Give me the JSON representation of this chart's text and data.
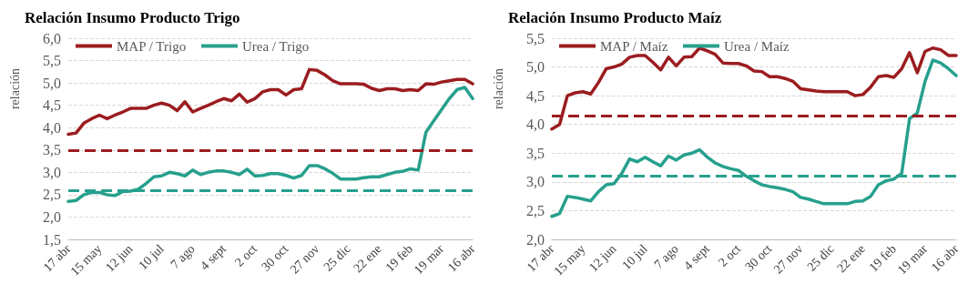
{
  "chart_data": [
    {
      "type": "line",
      "title": "Relación Insumo Producto Trigo",
      "ylabel": "relación",
      "categories": [
        "17 abr",
        null,
        null,
        null,
        "15 may",
        null,
        null,
        null,
        "12 jun",
        null,
        null,
        null,
        "10 jul",
        null,
        null,
        null,
        "7 ago",
        null,
        null,
        null,
        "4 sept",
        null,
        null,
        null,
        "2 oct",
        null,
        null,
        null,
        "30 oct",
        null,
        null,
        null,
        "27 nov",
        null,
        null,
        null,
        "25 dic",
        null,
        null,
        null,
        "22 ene",
        null,
        null,
        null,
        "19 feb",
        null,
        null,
        null,
        "19 mar",
        null,
        null,
        null,
        "16 abr"
      ],
      "series": [
        {
          "name": "MAP / Trigo",
          "color": "#9b1c1f",
          "values": [
            3.85,
            3.88,
            4.1,
            4.2,
            4.28,
            4.2,
            4.28,
            4.35,
            4.43,
            4.43,
            4.43,
            4.5,
            4.55,
            4.5,
            4.38,
            4.58,
            4.35,
            4.43,
            4.5,
            4.58,
            4.65,
            4.6,
            4.75,
            4.57,
            4.65,
            4.8,
            4.85,
            4.85,
            4.73,
            4.85,
            4.87,
            5.3,
            5.28,
            5.18,
            5.05,
            4.98,
            4.98,
            4.98,
            4.97,
            4.88,
            4.83,
            4.87,
            4.87,
            4.83,
            4.85,
            4.83,
            4.98,
            4.97,
            5.02,
            5.05,
            5.08,
            5.08,
            4.98
          ]
        },
        {
          "name": "Urea / Trigo",
          "color": "#26a08d",
          "values": [
            2.35,
            2.37,
            2.5,
            2.55,
            2.55,
            2.5,
            2.48,
            2.57,
            2.58,
            2.62,
            2.75,
            2.9,
            2.92,
            3.0,
            2.97,
            2.92,
            3.05,
            2.95,
            3.0,
            3.03,
            3.03,
            3.0,
            2.95,
            3.07,
            2.92,
            2.93,
            2.97,
            2.97,
            2.93,
            2.87,
            2.93,
            3.15,
            3.15,
            3.08,
            2.98,
            2.85,
            2.85,
            2.85,
            2.88,
            2.9,
            2.9,
            2.95,
            3.0,
            3.02,
            3.08,
            3.05,
            3.9,
            4.15,
            4.4,
            4.65,
            4.85,
            4.9,
            4.65
          ]
        }
      ],
      "ref_lines": [
        {
          "axis": "y",
          "value": 3.5,
          "label": null,
          "color": "#9b1c1f",
          "line_style": "dashed"
        },
        {
          "axis": "y",
          "value": 2.6,
          "label": null,
          "color": "#26a08d",
          "line_style": "dashed"
        }
      ],
      "ylim": [
        1.5,
        6.0
      ],
      "yticks": [
        {
          "value": 1.5,
          "label": "1,5"
        },
        {
          "value": 2.0,
          "label": "2,0"
        },
        {
          "value": 2.5,
          "label": "2,5"
        },
        {
          "value": 3.0,
          "label": "3,0"
        },
        {
          "value": 3.5,
          "label": "3,5"
        },
        {
          "value": 4.0,
          "label": "4,0"
        },
        {
          "value": 4.5,
          "label": "4,5"
        },
        {
          "value": 5.0,
          "label": "5,0"
        },
        {
          "value": 5.5,
          "label": "5,5"
        },
        {
          "value": 6.0,
          "label": "6,0"
        }
      ],
      "grid": "y",
      "legend": "top left",
      "marker": "none",
      "line_style": "solid"
    },
    {
      "type": "line",
      "title": "Relación Insumo Producto Maíz",
      "ylabel": "relación",
      "categories": [
        "17 abr",
        null,
        null,
        null,
        "15 may",
        null,
        null,
        null,
        "12 jun",
        null,
        null,
        null,
        "10 jul",
        null,
        null,
        null,
        "7 ago",
        null,
        null,
        null,
        "4 sept",
        null,
        null,
        null,
        "2 oct",
        null,
        null,
        null,
        "30 oct",
        null,
        null,
        null,
        "27 nov",
        null,
        null,
        null,
        "25 dic",
        null,
        null,
        null,
        "22 ene",
        null,
        null,
        null,
        "19 feb",
        null,
        null,
        null,
        "19 mar",
        null,
        null,
        null,
        "16 abr"
      ],
      "series": [
        {
          "name": "MAP / Maíz",
          "color": "#9b1c1f",
          "values": [
            3.92,
            4.0,
            4.5,
            4.55,
            4.57,
            4.53,
            4.73,
            4.97,
            5.0,
            5.05,
            5.17,
            5.2,
            5.2,
            5.08,
            4.95,
            5.17,
            5.02,
            5.17,
            5.18,
            5.33,
            5.28,
            5.22,
            5.07,
            5.06,
            5.06,
            5.02,
            4.93,
            4.92,
            4.83,
            4.83,
            4.8,
            4.75,
            4.62,
            4.6,
            4.58,
            4.57,
            4.57,
            4.57,
            4.57,
            4.5,
            4.52,
            4.65,
            4.83,
            4.85,
            4.82,
            4.97,
            5.25,
            4.9,
            5.27,
            5.33,
            5.3,
            5.2,
            5.2
          ]
        },
        {
          "name": "Urea / Maíz",
          "color": "#26a08d",
          "values": [
            2.4,
            2.45,
            2.75,
            2.73,
            2.7,
            2.67,
            2.83,
            2.95,
            2.97,
            3.15,
            3.4,
            3.35,
            3.43,
            3.35,
            3.28,
            3.45,
            3.38,
            3.47,
            3.5,
            3.56,
            3.43,
            3.33,
            3.27,
            3.23,
            3.2,
            3.1,
            3.02,
            2.95,
            2.92,
            2.9,
            2.87,
            2.83,
            2.73,
            2.7,
            2.66,
            2.62,
            2.62,
            2.62,
            2.62,
            2.66,
            2.67,
            2.75,
            2.95,
            3.02,
            3.05,
            3.15,
            4.1,
            4.2,
            4.75,
            5.12,
            5.07,
            4.97,
            4.85
          ]
        }
      ],
      "ref_lines": [
        {
          "axis": "y",
          "value": 4.15,
          "label": null,
          "color": "#9b1c1f",
          "line_style": "dashed"
        },
        {
          "axis": "y",
          "value": 3.1,
          "label": null,
          "color": "#26a08d",
          "line_style": "dashed"
        }
      ],
      "ylim": [
        2.0,
        5.5
      ],
      "yticks": [
        {
          "value": 2.0,
          "label": "2,0"
        },
        {
          "value": 2.5,
          "label": "2,5"
        },
        {
          "value": 3.0,
          "label": "3,0"
        },
        {
          "value": 3.5,
          "label": "3,5"
        },
        {
          "value": 4.0,
          "label": "4,0"
        },
        {
          "value": 4.5,
          "label": "4,5"
        },
        {
          "value": 5.0,
          "label": "5,0"
        },
        {
          "value": 5.5,
          "label": "5,5"
        }
      ],
      "grid": "y",
      "legend": "top left",
      "marker": "none",
      "line_style": "solid"
    }
  ]
}
